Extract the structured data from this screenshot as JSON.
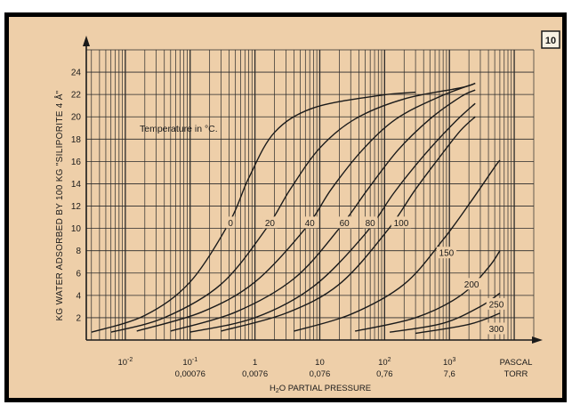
{
  "figure_number": "10",
  "colors": {
    "paper": "#eecfa9",
    "grid": "#2a2a2a",
    "ink": "#1a1a1a",
    "frame": "#000000",
    "badge_bg": "#f7f1e3"
  },
  "chart_data": {
    "type": "line",
    "title": "",
    "xlabel": "H2O PARTIAL PRESSURE",
    "ylabel": "KG WATER ADSORBED BY 100 KG \"SILIPORITE 4 Å\"",
    "x_scale": "log",
    "x_unit_primary": "PASCAL",
    "x_unit_secondary": "TORR",
    "xlim": [
      0.0025,
      20000
    ],
    "ylim": [
      0,
      26
    ],
    "grid": true,
    "legend_title": "Temperature in °C.",
    "x_ticks": [
      {
        "value": 0.01,
        "pascal_base": "10",
        "pascal_exp": "-2",
        "torr": ""
      },
      {
        "value": 0.1,
        "pascal_base": "10",
        "pascal_exp": "-1",
        "torr": "0,00076"
      },
      {
        "value": 1,
        "pascal_base": "1",
        "pascal_exp": "",
        "torr": "0,0076"
      },
      {
        "value": 10,
        "pascal_base": "10",
        "pascal_exp": "",
        "torr": "0,076"
      },
      {
        "value": 100,
        "pascal_base": "10",
        "pascal_exp": "2",
        "torr": "0,76"
      },
      {
        "value": 1000,
        "pascal_base": "10",
        "pascal_exp": "3",
        "torr": "7,6"
      }
    ],
    "y_ticks": [
      2,
      4,
      6,
      8,
      10,
      12,
      14,
      16,
      18,
      20,
      22,
      24
    ],
    "series": [
      {
        "name": "0",
        "points": [
          [
            0.003,
            0.7
          ],
          [
            0.02,
            2.2
          ],
          [
            0.1,
            5.2
          ],
          [
            0.4,
            10.5
          ],
          [
            0.8,
            14.5
          ],
          [
            2,
            18.6
          ],
          [
            8,
            20.8
          ],
          [
            80,
            21.9
          ],
          [
            300,
            22.2
          ]
        ]
      },
      {
        "name": "20",
        "points": [
          [
            0.006,
            0.7
          ],
          [
            0.04,
            2.0
          ],
          [
            0.3,
            5.0
          ],
          [
            1.5,
            10.0
          ],
          [
            3.5,
            13.5
          ],
          [
            10,
            17.2
          ],
          [
            35,
            19.8
          ],
          [
            200,
            21.6
          ],
          [
            1500,
            22.6
          ],
          [
            2500,
            23.0
          ]
        ]
      },
      {
        "name": "40",
        "points": [
          [
            0.015,
            0.8
          ],
          [
            0.15,
            2.5
          ],
          [
            1,
            5.2
          ],
          [
            6,
            10.0
          ],
          [
            15,
            13.5
          ],
          [
            45,
            17.0
          ],
          [
            150,
            19.8
          ],
          [
            700,
            21.8
          ],
          [
            2500,
            23.0
          ]
        ]
      },
      {
        "name": "60",
        "points": [
          [
            0.05,
            0.8
          ],
          [
            0.5,
            2.5
          ],
          [
            4,
            5.5
          ],
          [
            20,
            10.0
          ],
          [
            55,
            13.5
          ],
          [
            160,
            17.0
          ],
          [
            500,
            19.8
          ],
          [
            1500,
            21.8
          ],
          [
            2500,
            22.4
          ]
        ]
      },
      {
        "name": "80",
        "points": [
          [
            0.1,
            0.7
          ],
          [
            1,
            2.0
          ],
          [
            8,
            4.8
          ],
          [
            50,
            9.5
          ],
          [
            140,
            13.2
          ],
          [
            400,
            16.5
          ],
          [
            1200,
            19.5
          ],
          [
            2500,
            21.2
          ]
        ]
      },
      {
        "name": "100",
        "points": [
          [
            0.3,
            0.8
          ],
          [
            3,
            2.4
          ],
          [
            20,
            5.0
          ],
          [
            110,
            9.8
          ],
          [
            300,
            13.5
          ],
          [
            800,
            16.8
          ],
          [
            1500,
            18.8
          ],
          [
            2500,
            20.0
          ]
        ]
      },
      {
        "name": "150",
        "points": [
          [
            4,
            0.8
          ],
          [
            30,
            2.3
          ],
          [
            200,
            5.0
          ],
          [
            800,
            9.0
          ],
          [
            2200,
            12.5
          ],
          [
            5000,
            15.5
          ],
          [
            6000,
            16.1
          ]
        ]
      },
      {
        "name": "200",
        "points": [
          [
            35,
            0.8
          ],
          [
            300,
            2.0
          ],
          [
            1500,
            4.0
          ],
          [
            4000,
            6.5
          ],
          [
            6000,
            8.0
          ]
        ]
      },
      {
        "name": "250",
        "points": [
          [
            120,
            0.7
          ],
          [
            800,
            1.5
          ],
          [
            3000,
            3.0
          ],
          [
            6000,
            4.2
          ]
        ]
      },
      {
        "name": "300",
        "points": [
          [
            300,
            0.6
          ],
          [
            2000,
            1.4
          ],
          [
            6000,
            2.4
          ]
        ]
      }
    ],
    "curve_labels": [
      {
        "series": "0",
        "x": 0.42,
        "y": 10.5
      },
      {
        "series": "20",
        "x": 1.7,
        "y": 10.5
      },
      {
        "series": "40",
        "x": 7,
        "y": 10.5
      },
      {
        "series": "60",
        "x": 24,
        "y": 10.5
      },
      {
        "series": "80",
        "x": 60,
        "y": 10.5
      },
      {
        "series": "100",
        "x": 180,
        "y": 10.5
      },
      {
        "series": "150",
        "x": 900,
        "y": 7.8
      },
      {
        "series": "200",
        "x": 2200,
        "y": 5.0
      },
      {
        "series": "250",
        "x": 5300,
        "y": 3.2
      },
      {
        "series": "300",
        "x": 5300,
        "y": 1.0
      }
    ]
  }
}
